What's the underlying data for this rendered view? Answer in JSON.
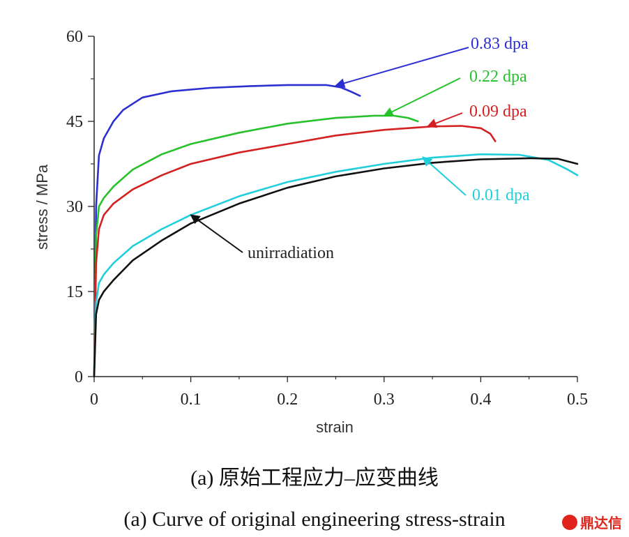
{
  "chart_data": {
    "type": "line",
    "xlabel": "strain",
    "ylabel": "stress / MPa",
    "xlim": [
      0,
      0.5
    ],
    "ylim": [
      0,
      60
    ],
    "xticks": [
      "0",
      "0.1",
      "0.2",
      "0.3",
      "0.4",
      "0.5"
    ],
    "yticks": [
      "0",
      "15",
      "30",
      "45",
      "60"
    ],
    "grid": false,
    "series": [
      {
        "name": "0.83 dpa",
        "color": "#2b2fd0",
        "x": [
          0,
          0.002,
          0.005,
          0.01,
          0.02,
          0.03,
          0.05,
          0.08,
          0.12,
          0.16,
          0.2,
          0.24,
          0.255,
          0.265,
          0.275
        ],
        "y": [
          0,
          30,
          39,
          42,
          45,
          47,
          49.2,
          50.3,
          50.9,
          51.2,
          51.4,
          51.4,
          51,
          50.3,
          49.5
        ],
        "annotation_x": 0.25,
        "annotation_y": 51.3
      },
      {
        "name": "0.22 dpa",
        "color": "#27c12b",
        "x": [
          0,
          0.002,
          0.005,
          0.01,
          0.02,
          0.04,
          0.07,
          0.1,
          0.15,
          0.2,
          0.25,
          0.29,
          0.31,
          0.325,
          0.335
        ],
        "y": [
          0,
          25,
          30,
          31.5,
          33.5,
          36.5,
          39.2,
          41,
          43,
          44.6,
          45.6,
          46,
          46,
          45.6,
          45
        ],
        "annotation_x": 0.3,
        "annotation_y": 46
      },
      {
        "name": "0.09 dpa",
        "color": "#d42020",
        "x": [
          0,
          0.002,
          0.005,
          0.01,
          0.02,
          0.04,
          0.07,
          0.1,
          0.15,
          0.2,
          0.25,
          0.3,
          0.35,
          0.38,
          0.4,
          0.41,
          0.415
        ],
        "y": [
          0,
          20,
          26,
          28.5,
          30.5,
          33,
          35.5,
          37.5,
          39.5,
          41,
          42.5,
          43.5,
          44.1,
          44.2,
          43.8,
          42.8,
          41.5
        ],
        "annotation_x": 0.345,
        "annotation_y": 44.1
      },
      {
        "name": "0.01 dpa",
        "color": "#21cfdb",
        "x": [
          0,
          0.002,
          0.005,
          0.01,
          0.02,
          0.04,
          0.07,
          0.1,
          0.15,
          0.2,
          0.25,
          0.3,
          0.35,
          0.4,
          0.44,
          0.47,
          0.49,
          0.5
        ],
        "y": [
          0,
          13,
          16.5,
          18,
          20,
          23,
          26,
          28.5,
          31.8,
          34.3,
          36.1,
          37.5,
          38.6,
          39.2,
          39.1,
          38.2,
          36.5,
          35.5
        ],
        "annotation_x": 0.34,
        "annotation_y": 38.7
      },
      {
        "name": "unirradiation",
        "color": "#111111",
        "x": [
          0,
          0.002,
          0.005,
          0.01,
          0.02,
          0.04,
          0.07,
          0.1,
          0.15,
          0.2,
          0.25,
          0.3,
          0.35,
          0.4,
          0.45,
          0.48,
          0.5
        ],
        "y": [
          0,
          11,
          13.5,
          15,
          17,
          20.5,
          24,
          27,
          30.5,
          33.3,
          35.3,
          36.7,
          37.7,
          38.3,
          38.5,
          38.4,
          37.5
        ],
        "annotation_x": 0.1,
        "annotation_y": 28.5
      }
    ]
  },
  "caption_cn": "(a) 原始工程应力–应变曲线",
  "caption_en": "(a) Curve of original engineering stress-strain",
  "watermark": "鼎达信"
}
